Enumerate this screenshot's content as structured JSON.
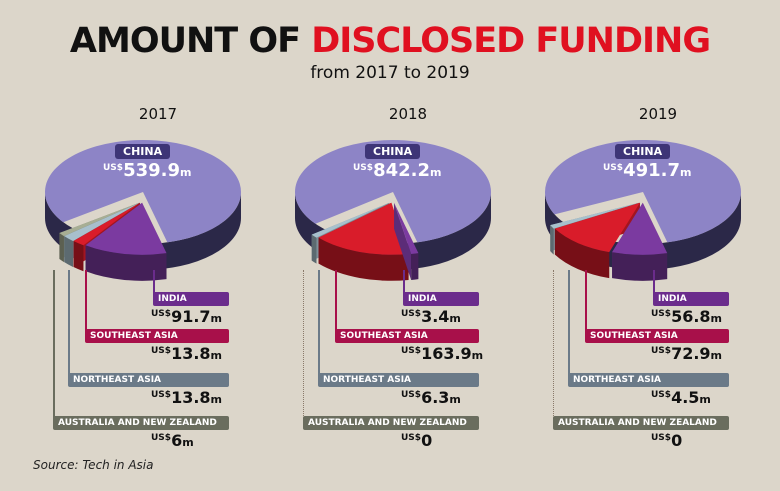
{
  "header": {
    "title_part1": "AMOUNT OF ",
    "title_part2": "DISCLOSED FUNDING",
    "subtitle": "from 2017 to 2019"
  },
  "source": "Source: Tech in Asia",
  "colors": {
    "china": "#8d84c6",
    "china_side": "#2b2848",
    "india": "#7b3aa0",
    "southeast_asia": "#d91c2a",
    "northeast_asia": "#a8c0cc",
    "australia_nz": "#a7ae94",
    "tag_india": "#6b2c8c",
    "tag_sea": "#a8104a",
    "tag_nea": "#6b7a88",
    "tag_anz": "#6a6d5e",
    "title_red": "#e01020"
  },
  "chart_data": [
    {
      "type": "pie",
      "title": "2017",
      "unit": "US$ m",
      "slices": [
        {
          "label": "CHINA",
          "value": 539.9,
          "prefix": "US$",
          "display": "539.9",
          "suffix": "m"
        },
        {
          "label": "INDIA",
          "value": 91.7,
          "prefix": "US$",
          "display": "91.7",
          "suffix": "m"
        },
        {
          "label": "SOUTHEAST ASIA",
          "value": 13.8,
          "prefix": "US$",
          "display": "13.8",
          "suffix": "m"
        },
        {
          "label": "NORTHEAST ASIA",
          "value": 13.8,
          "prefix": "US$",
          "display": "13.8",
          "suffix": "m"
        },
        {
          "label": "AUSTRALIA AND NEW ZEALAND",
          "value": 6,
          "prefix": "US$",
          "display": "6",
          "suffix": "m"
        }
      ]
    },
    {
      "type": "pie",
      "title": "2018",
      "unit": "US$ m",
      "slices": [
        {
          "label": "CHINA",
          "value": 842.2,
          "prefix": "US$",
          "display": "842.2",
          "suffix": "m"
        },
        {
          "label": "INDIA",
          "value": 3.4,
          "prefix": "US$",
          "display": "3.4",
          "suffix": "m"
        },
        {
          "label": "SOUTHEAST ASIA",
          "value": 163.9,
          "prefix": "US$",
          "display": "163.9",
          "suffix": "m"
        },
        {
          "label": "NORTHEAST ASIA",
          "value": 6.3,
          "prefix": "US$",
          "display": "6.3",
          "suffix": "m"
        },
        {
          "label": "AUSTRALIA AND NEW ZEALAND",
          "value": 0,
          "prefix": "US$",
          "display": "0",
          "suffix": ""
        }
      ]
    },
    {
      "type": "pie",
      "title": "2019",
      "unit": "US$ m",
      "slices": [
        {
          "label": "CHINA",
          "value": 491.7,
          "prefix": "US$",
          "display": "491.7",
          "suffix": "m"
        },
        {
          "label": "INDIA",
          "value": 56.8,
          "prefix": "US$",
          "display": "56.8",
          "suffix": "m"
        },
        {
          "label": "SOUTHEAST ASIA",
          "value": 72.9,
          "prefix": "US$",
          "display": "72.9",
          "suffix": "m"
        },
        {
          "label": "NORTHEAST ASIA",
          "value": 4.5,
          "prefix": "US$",
          "display": "4.5",
          "suffix": "m"
        },
        {
          "label": "AUSTRALIA AND NEW ZEALAND",
          "value": 0,
          "prefix": "US$",
          "display": "0",
          "suffix": ""
        }
      ]
    }
  ]
}
